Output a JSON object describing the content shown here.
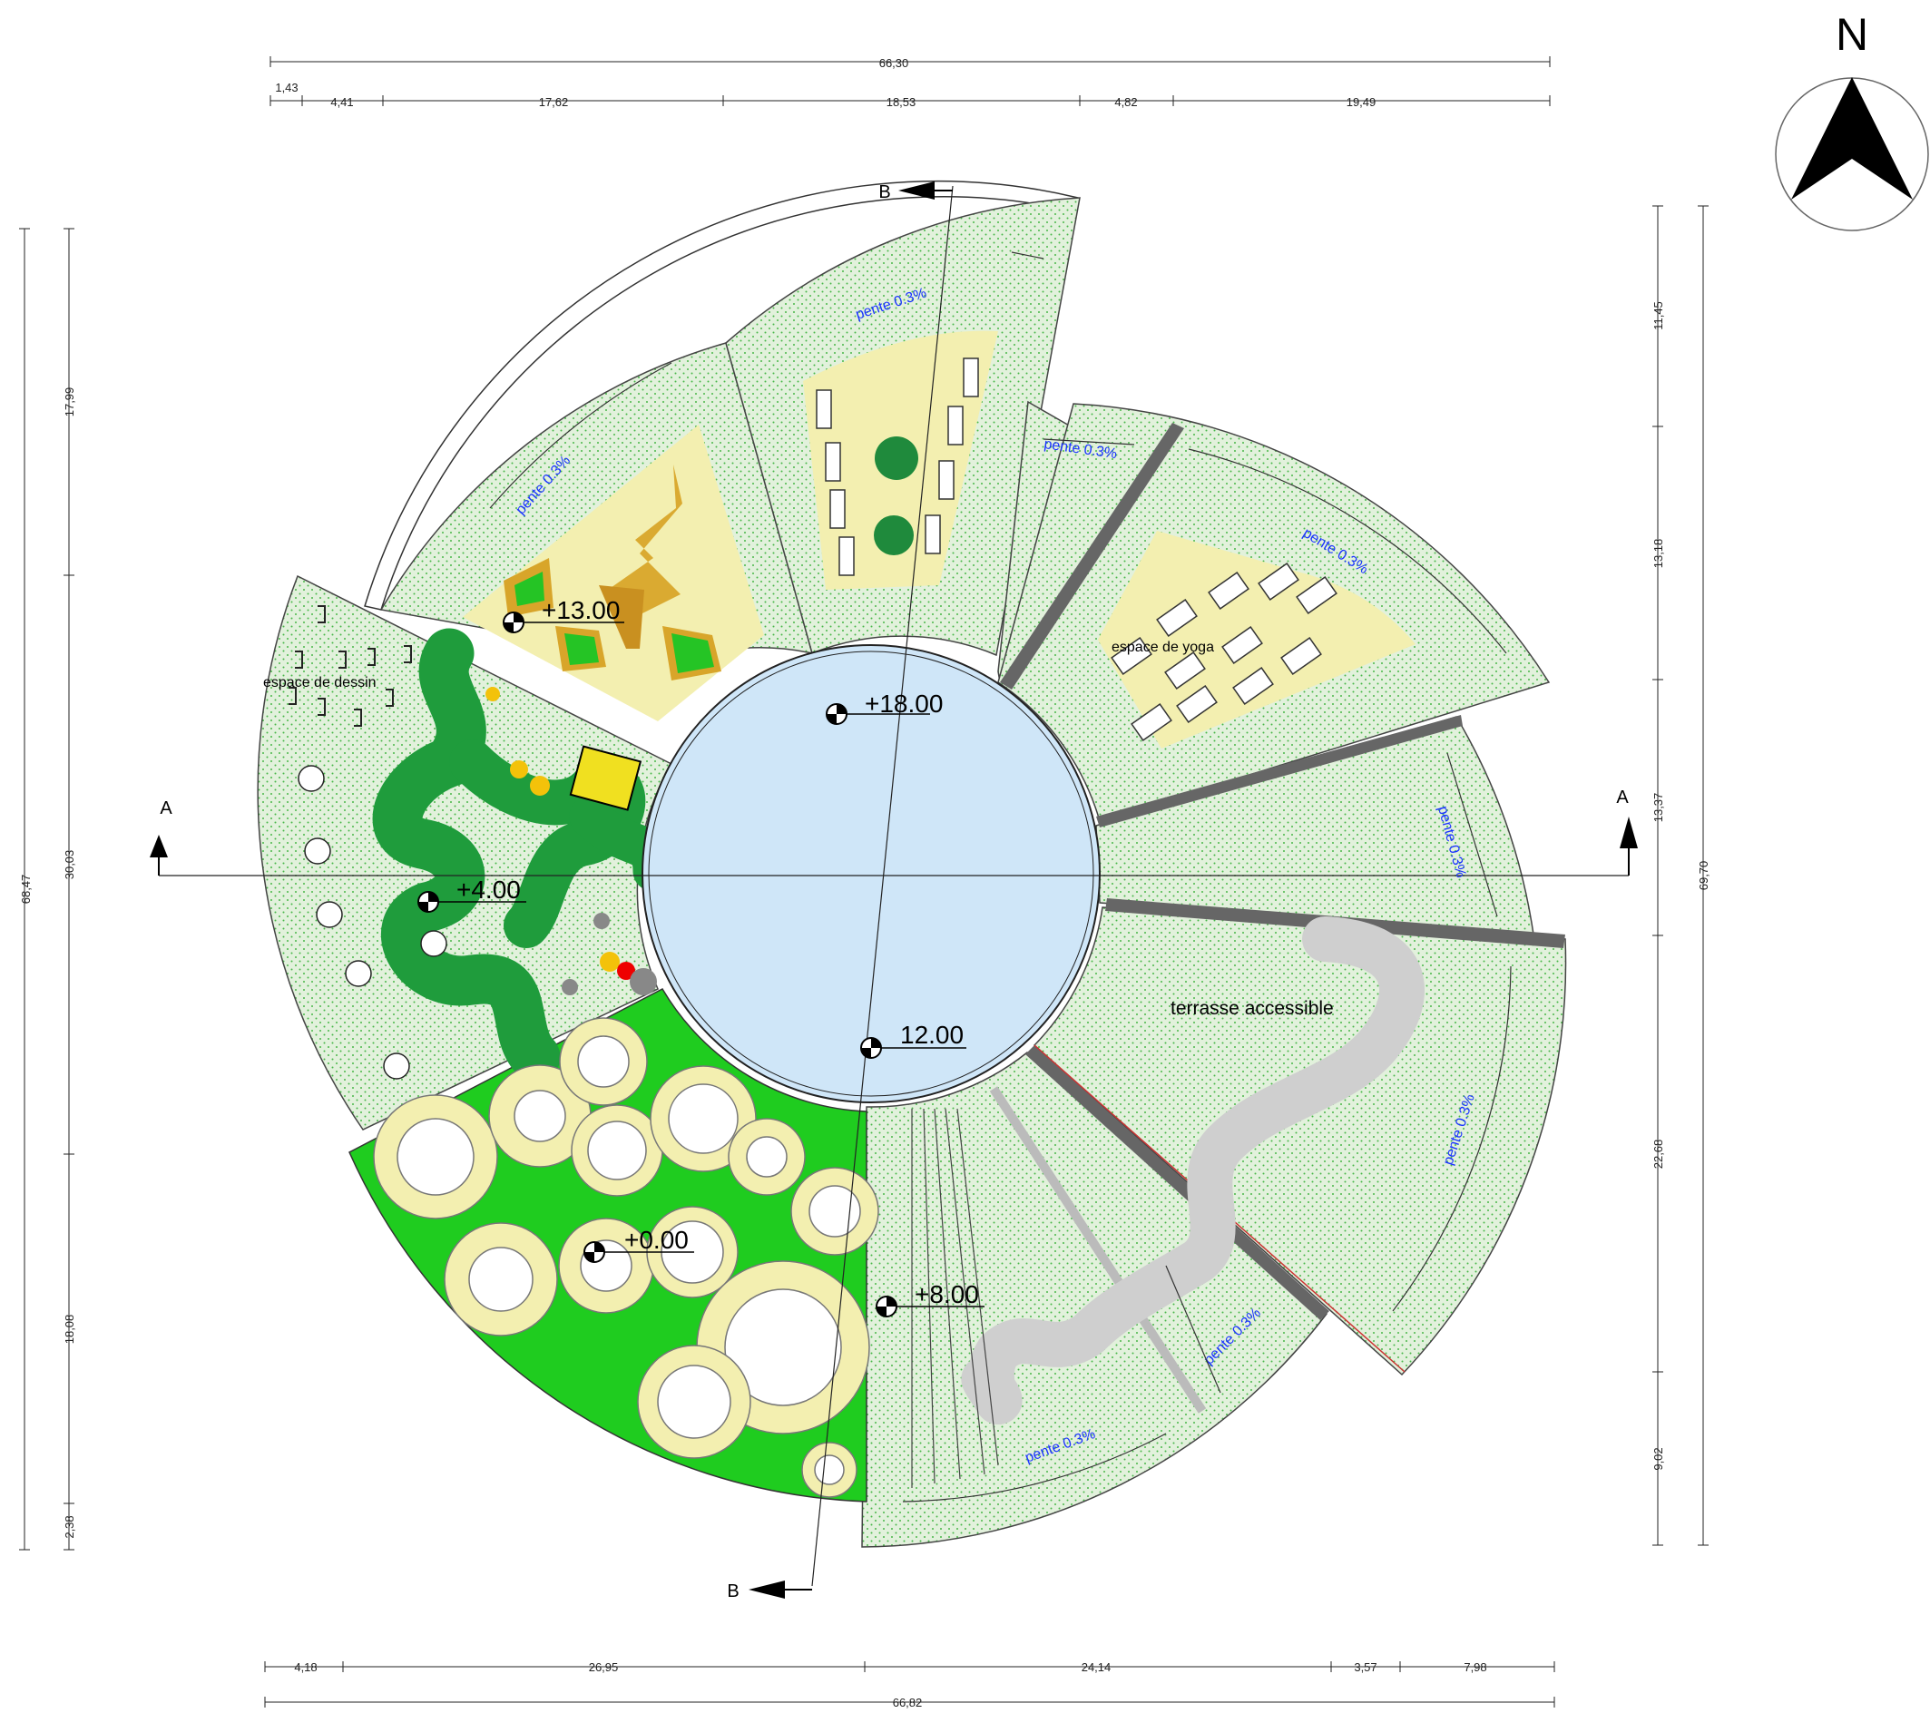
{
  "north_label": "N",
  "dimensions": {
    "top_total": "66,30",
    "top_segments": [
      "1,43",
      "4,41",
      "17,62",
      "18,53",
      "4,82",
      "19,49"
    ],
    "bottom_total": "66,82",
    "bottom_segments": [
      "4,18",
      "26,95",
      "24,14",
      "3,57",
      "7,98"
    ],
    "left_total": "68,47",
    "left_segments": [
      "17,99",
      "30,03",
      "18,08",
      "2,38"
    ],
    "right_total": "69,70",
    "right_segments": [
      "11,45",
      "13,18",
      "13,37",
      "22,68",
      "9,02"
    ]
  },
  "section_markers": {
    "a_left": "A",
    "a_right": "A",
    "b_top": "B",
    "b_bottom": "B"
  },
  "levels": {
    "center": "+18.00",
    "center_lower": "12.00",
    "upper_left": "+13.00",
    "west": "+4.00",
    "south": "+0.00",
    "south_east": "+8.00"
  },
  "zone_labels": {
    "drawing": "espace de dessin",
    "yoga": "espace de yoga",
    "terrace": "terrasse accessible"
  },
  "slope_label": "pente 0.3%",
  "colors": {
    "hatch_green": "#dcefd8",
    "hatch_dot": "#3fb53f",
    "sand": "#f3efb0",
    "water": "#cfe6f8",
    "lawn": "#1fcc1f",
    "dark_green": "#1f9c3c",
    "path_gray": "#cfcfcf",
    "gold": "#d8a52a"
  }
}
